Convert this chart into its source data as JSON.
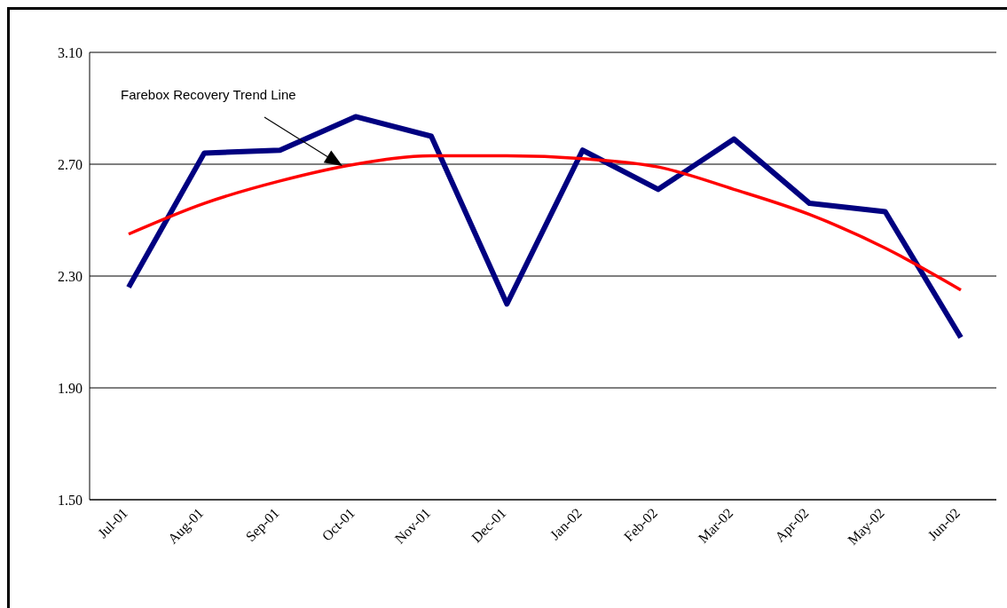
{
  "chart_data": {
    "type": "line",
    "categories": [
      "Jul-01",
      "Aug-01",
      "Sep-01",
      "Oct-01",
      "Nov-01",
      "Dec-01",
      "Jan-02",
      "Feb-02",
      "Mar-02",
      "Apr-02",
      "May-02",
      "Jun-02"
    ],
    "series": [
      {
        "color": "#000080",
        "values": [
          2.26,
          2.74,
          2.75,
          2.87,
          2.8,
          2.2,
          2.75,
          2.61,
          2.79,
          2.56,
          2.53,
          2.08
        ]
      },
      {
        "type": "line",
        "color": "#ff0000",
        "values": [
          2.45,
          2.56,
          2.64,
          2.7,
          2.73,
          2.73,
          2.72,
          2.69,
          2.61,
          2.52,
          2.4,
          2.25
        ]
      }
    ],
    "ylim": [
      1.5,
      3.1
    ],
    "yticks": [
      {
        "value": 1.5,
        "label": "1.50"
      },
      {
        "value": 1.9,
        "label": "1.90"
      },
      {
        "value": 2.3,
        "label": "2.30"
      },
      {
        "value": 2.7,
        "label": "2.70"
      },
      {
        "value": 3.1,
        "label": "3.10"
      }
    ],
    "grid": "y",
    "legend": false,
    "marker": "none",
    "line_style": "solid",
    "annotations": [
      "Farebox Recovery Trend Line"
    ]
  }
}
